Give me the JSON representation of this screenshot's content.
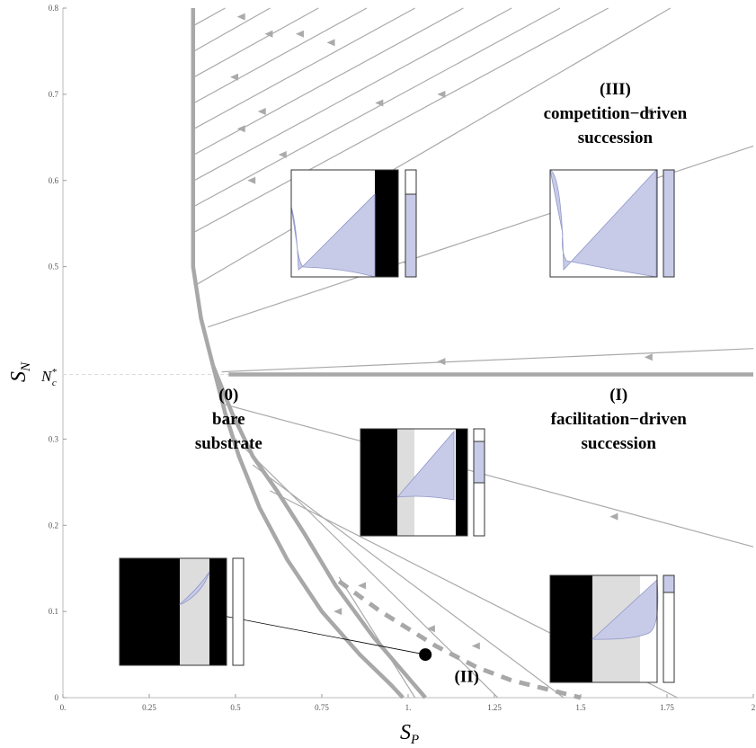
{
  "chart_data": {
    "type": "phase-plane",
    "xlabel": "S",
    "xlabel_sub": "P",
    "ylabel": "S",
    "ylabel_sub": "N",
    "xlim": [
      0,
      2
    ],
    "ylim": [
      0,
      0.8
    ],
    "x_ticks": [
      0,
      0.25,
      0.5,
      0.75,
      1,
      1.25,
      1.5,
      1.75,
      2
    ],
    "x_tick_labels": [
      "0.",
      "0.25",
      "0.5",
      "0.75",
      "1.",
      "1.25",
      "1.5",
      "1.75",
      "2"
    ],
    "y_ticks": [
      0,
      0.1,
      0.2,
      0.3,
      0.5,
      0.6,
      0.7,
      0.8
    ],
    "y_tick_labels": [
      "0",
      "0.1",
      "0.2",
      "0.3",
      "0.5",
      "0.6",
      "0.7",
      "0.8"
    ],
    "nc_value": 0.375,
    "nc_label": "N",
    "nc_label_sup": "*",
    "nc_label_sub": "c",
    "marker_point": {
      "x": 1.05,
      "y": 0.05
    },
    "regions": [
      {
        "id": "0",
        "lines": [
          "(0)",
          "bare",
          "substrate"
        ],
        "x": 0.48,
        "y": 0.345
      },
      {
        "id": "I",
        "lines": [
          "(I)",
          "facilitation−driven",
          "succession"
        ],
        "x": 1.61,
        "y": 0.345
      },
      {
        "id": "II",
        "lines": [
          "(II)"
        ],
        "x": 1.17,
        "y": 0.018
      },
      {
        "id": "III",
        "lines": [
          "(III)",
          "competition−driven",
          "succession"
        ],
        "x": 1.6,
        "y": 0.7
      }
    ],
    "boundary_upper": [
      [
        0.377,
        0.8
      ],
      [
        0.377,
        0.5
      ],
      [
        0.4,
        0.44
      ],
      [
        0.435,
        0.385
      ]
    ],
    "boundary_lower": [
      [
        0.435,
        0.385
      ],
      [
        0.47,
        0.33
      ],
      [
        0.51,
        0.28
      ],
      [
        0.57,
        0.22
      ],
      [
        0.65,
        0.16
      ],
      [
        0.75,
        0.1
      ],
      [
        0.86,
        0.05
      ],
      [
        0.95,
        0.015
      ],
      [
        0.985,
        0
      ]
    ],
    "boundary_outer": [
      [
        0.435,
        0.385
      ],
      [
        0.49,
        0.33
      ],
      [
        0.55,
        0.28
      ],
      [
        0.62,
        0.24
      ],
      [
        0.7,
        0.19
      ],
      [
        0.79,
        0.13
      ],
      [
        0.9,
        0.07
      ],
      [
        1.05,
        0
      ]
    ],
    "separatrix_horizontal": [
      [
        0.48,
        0.375
      ],
      [
        2,
        0.375
      ]
    ],
    "dashed_separatrix": [
      [
        0.8,
        0.135
      ],
      [
        0.92,
        0.1
      ],
      [
        1.08,
        0.06
      ],
      [
        1.2,
        0.035
      ],
      [
        1.3,
        0.02
      ],
      [
        1.5,
        0
      ]
    ]
  }
}
